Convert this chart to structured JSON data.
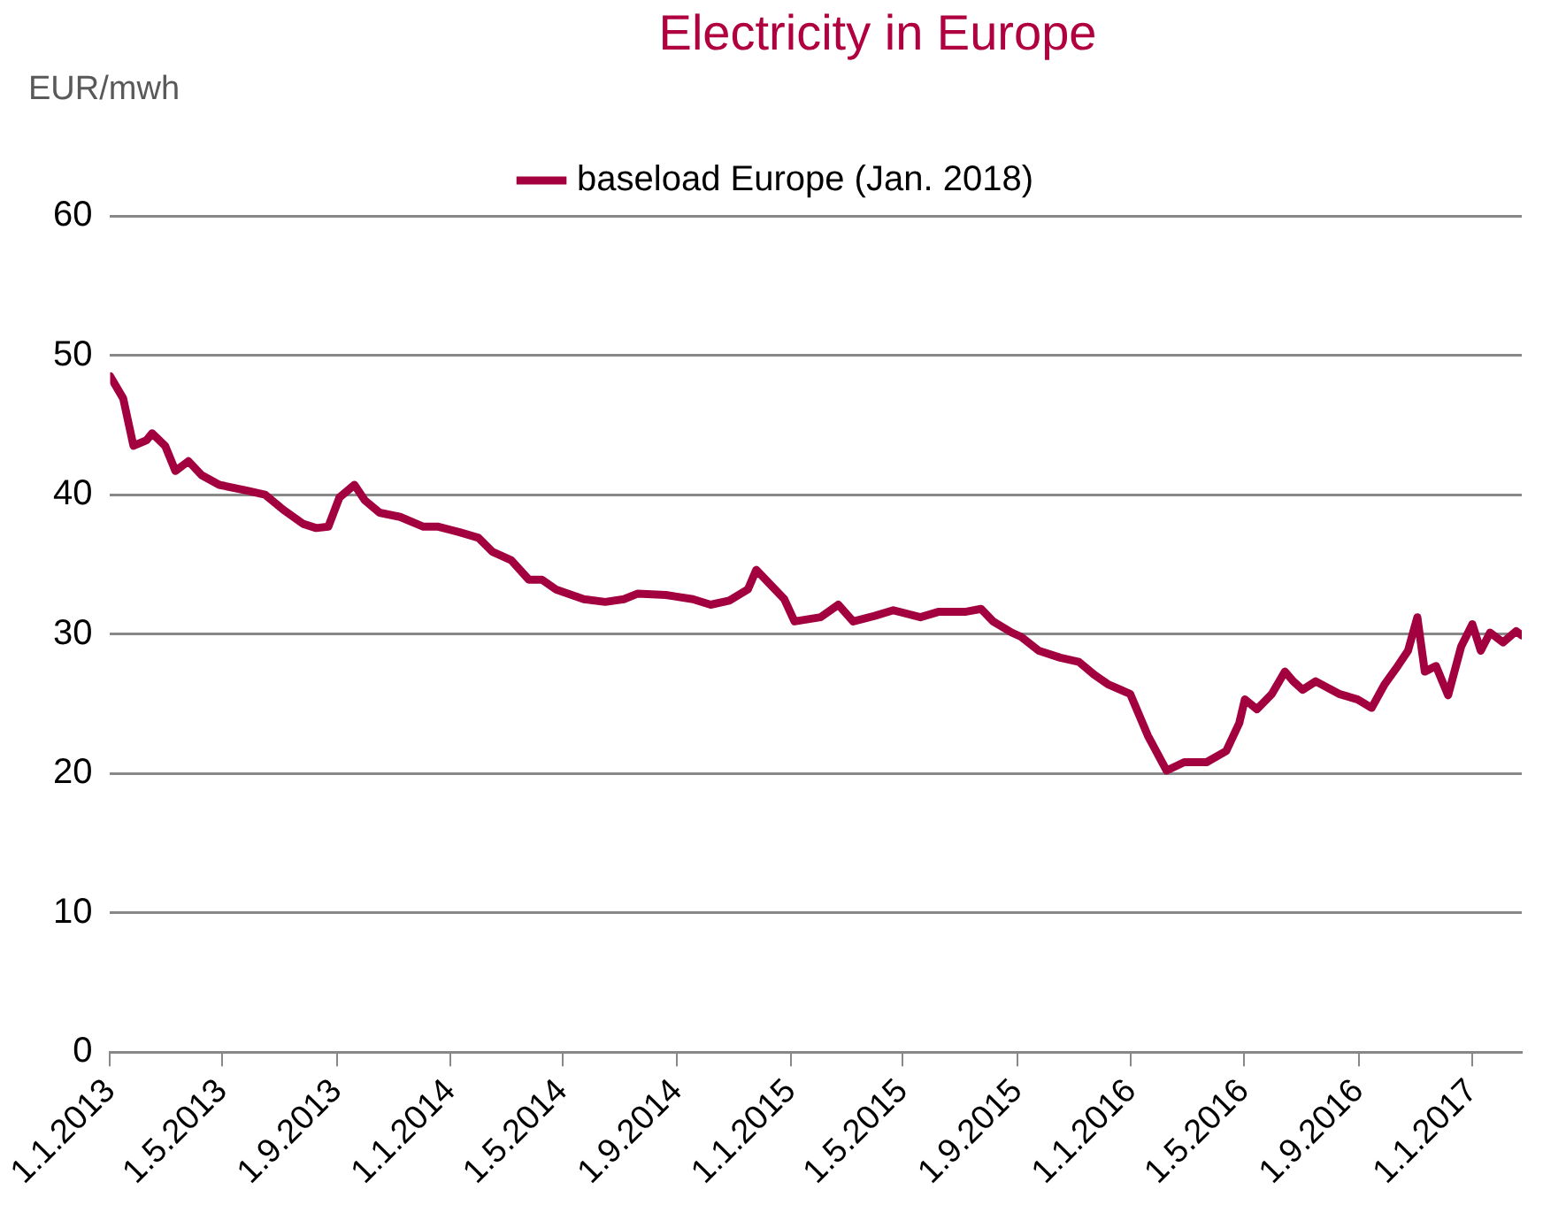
{
  "chart_data": {
    "type": "line",
    "title": "Electricity in Europe",
    "ylabel": "EUR/mwh",
    "x": [
      "2013-01-01",
      "2013-01-15",
      "2013-01-26",
      "2013-02-09",
      "2013-02-15",
      "2013-03-01",
      "2013-03-12",
      "2013-03-26",
      "2013-04-09",
      "2013-04-28",
      "2013-05-27",
      "2013-06-16",
      "2013-07-06",
      "2013-07-27",
      "2013-08-10",
      "2013-08-23",
      "2013-09-04",
      "2013-09-20",
      "2013-10-01",
      "2013-10-17",
      "2013-11-08",
      "2013-12-03",
      "2013-12-19",
      "2014-01-11",
      "2014-01-31",
      "2014-02-15",
      "2014-03-07",
      "2014-03-26",
      "2014-04-09",
      "2014-04-24",
      "2014-05-24",
      "2014-06-16",
      "2014-07-06",
      "2014-07-21",
      "2014-08-20",
      "2014-09-18",
      "2014-10-07",
      "2014-10-27",
      "2014-11-16",
      "2014-11-25",
      "2014-12-05",
      "2014-12-25",
      "2015-01-05",
      "2015-02-02",
      "2015-02-21",
      "2015-03-09",
      "2015-04-01",
      "2015-04-21",
      "2015-05-20",
      "2015-06-09",
      "2015-07-08",
      "2015-07-24",
      "2015-08-06",
      "2015-08-26",
      "2015-09-05",
      "2015-09-24",
      "2015-10-17",
      "2015-11-06",
      "2015-11-22",
      "2015-12-07",
      "2015-12-31",
      "2016-01-19",
      "2016-02-08",
      "2016-02-27",
      "2016-03-22",
      "2016-04-12",
      "2016-04-26",
      "2016-05-02",
      "2016-05-15",
      "2016-05-31",
      "2016-06-14",
      "2016-06-23",
      "2016-07-03",
      "2016-07-17",
      "2016-08-11",
      "2016-08-31",
      "2016-09-15",
      "2016-09-29",
      "2016-10-13",
      "2016-10-24",
      "2016-11-03",
      "2016-11-11",
      "2016-11-23",
      "2016-12-06",
      "2016-12-20",
      "2017-01-01",
      "2017-01-10",
      "2017-01-20",
      "2017-02-03",
      "2017-02-17",
      "2017-02-23"
    ],
    "series": [
      {
        "name": "baseload Europe (Jan. 2018)",
        "color": "#a3003f",
        "values": [
          48.5,
          46.9,
          43.5,
          43.9,
          44.4,
          43.5,
          41.7,
          42.4,
          41.4,
          40.7,
          40.3,
          40.0,
          38.9,
          37.9,
          37.6,
          37.7,
          39.8,
          40.7,
          39.6,
          38.7,
          38.4,
          37.7,
          37.7,
          37.3,
          36.9,
          35.9,
          35.3,
          33.9,
          33.9,
          33.2,
          32.5,
          32.3,
          32.5,
          32.9,
          32.8,
          32.5,
          32.1,
          32.4,
          33.2,
          34.6,
          33.9,
          32.5,
          30.9,
          31.2,
          32.1,
          30.9,
          31.3,
          31.7,
          31.2,
          31.6,
          31.6,
          31.8,
          30.9,
          30.1,
          29.8,
          28.8,
          28.3,
          28.0,
          27.1,
          26.4,
          25.7,
          22.7,
          20.2,
          20.8,
          20.8,
          21.6,
          23.6,
          25.3,
          24.6,
          25.7,
          27.3,
          26.6,
          26.0,
          26.6,
          25.7,
          25.3,
          24.7,
          26.4,
          27.7,
          28.8,
          31.2,
          27.3,
          27.7,
          25.6,
          29.1,
          30.7,
          28.8,
          30.1,
          29.4,
          30.2,
          29.9
        ]
      }
    ],
    "xlim": [
      "2013-01-01",
      "2017-02-23"
    ],
    "xticks": [
      {
        "value": "2013-01-01",
        "label": "1.1.2013"
      },
      {
        "value": "2013-05-01",
        "label": "1.5.2013"
      },
      {
        "value": "2013-09-01",
        "label": "1.9.2013"
      },
      {
        "value": "2014-01-01",
        "label": "1.1.2014"
      },
      {
        "value": "2014-05-01",
        "label": "1.5.2014"
      },
      {
        "value": "2014-09-01",
        "label": "1.9.2014"
      },
      {
        "value": "2015-01-01",
        "label": "1.1.2015"
      },
      {
        "value": "2015-05-01",
        "label": "1.5.2015"
      },
      {
        "value": "2015-09-01",
        "label": "1.9.2015"
      },
      {
        "value": "2016-01-01",
        "label": "1.1.2016"
      },
      {
        "value": "2016-05-01",
        "label": "1.5.2016"
      },
      {
        "value": "2016-09-01",
        "label": "1.9.2016"
      },
      {
        "value": "2017-01-01",
        "label": "1.1.2017"
      }
    ],
    "ylim": [
      0,
      60
    ],
    "yticks": [
      0,
      10,
      20,
      30,
      40,
      50,
      60
    ],
    "grid": "y",
    "legend": "top",
    "marker": "none",
    "line_style": "solid"
  }
}
